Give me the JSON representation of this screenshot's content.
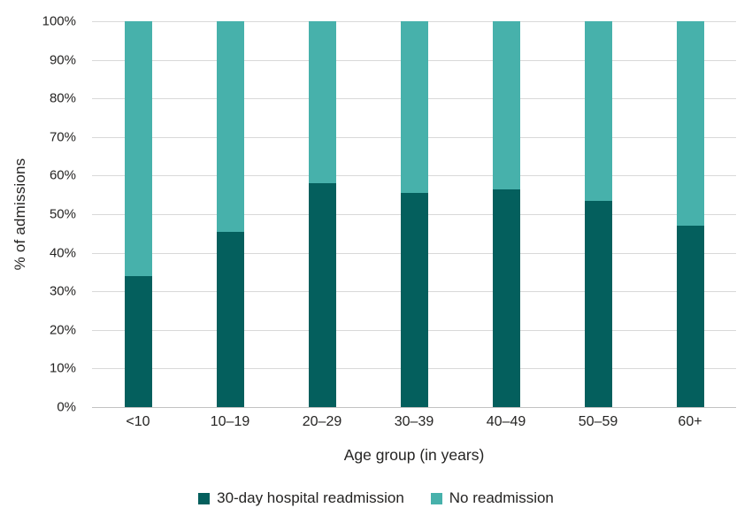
{
  "chart_data": {
    "type": "bar",
    "stacked": true,
    "categories": [
      "<10",
      "10–19",
      "20–29",
      "30–39",
      "40–49",
      "50–59",
      "60+"
    ],
    "series": [
      {
        "name": "30-day hospital readmission",
        "color": "#045f5d",
        "values": [
          34,
          45.5,
          58,
          55.5,
          56.5,
          53.5,
          47
        ]
      },
      {
        "name": "No readmission",
        "color": "#47b1ab",
        "values": [
          66,
          54.5,
          42,
          44.5,
          43.5,
          46.5,
          53
        ]
      }
    ],
    "xlabel": "Age group (in years)",
    "ylabel": "% of admissions",
    "ylim": [
      0,
      100
    ],
    "ytick_step": 10,
    "y_ticks": [
      "0%",
      "10%",
      "20%",
      "30%",
      "40%",
      "50%",
      "60%",
      "70%",
      "80%",
      "90%",
      "100%"
    ],
    "grid": true,
    "legend_position": "bottom",
    "colors": {
      "gridline": "#d9d9d9",
      "axis_line": "#c2c2c2",
      "text": "#252423",
      "background": "#ffffff"
    }
  }
}
